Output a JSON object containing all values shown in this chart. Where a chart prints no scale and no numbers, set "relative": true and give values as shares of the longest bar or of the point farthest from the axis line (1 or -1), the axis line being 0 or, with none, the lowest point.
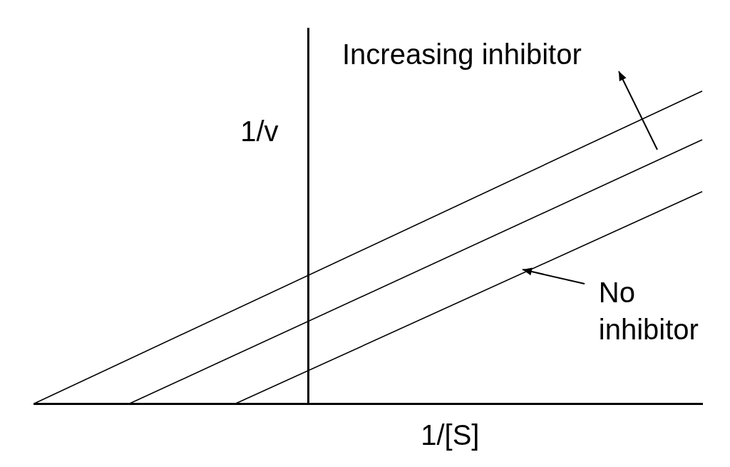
{
  "chart_data": {
    "type": "line",
    "relative": true,
    "xlabel": "1/[S]",
    "ylabel": "1/v",
    "categories": [
      null,
      null,
      null,
      null,
      null,
      null,
      null,
      null,
      null,
      null,
      null,
      null,
      null,
      null,
      null,
      null,
      null,
      null,
      null,
      null,
      null,
      null,
      null,
      null,
      null,
      null,
      null,
      null,
      null,
      null,
      null,
      null,
      null,
      null,
      null,
      null,
      null,
      null,
      null,
      null,
      null,
      null,
      null,
      null,
      null,
      null,
      null,
      null,
      null,
      null,
      null,
      null,
      null,
      null,
      null,
      null,
      null,
      null,
      null,
      null,
      null,
      null,
      null,
      null
    ],
    "annotations": [
      "Increasing inhibitor"
    ],
    "series": [
      {
        "color": "#000000",
        "values": [
          0,
          null,
          null,
          null,
          null,
          null,
          null,
          null,
          null,
          null,
          null,
          null,
          null,
          null,
          null,
          null,
          null,
          null,
          null,
          null,
          null,
          null,
          null,
          null,
          null,
          null,
          null,
          null,
          null,
          null,
          null,
          null,
          null,
          null,
          null,
          null,
          null,
          null,
          null,
          null,
          null,
          null,
          null,
          null,
          null,
          null,
          null,
          null,
          null,
          null,
          null,
          null,
          null,
          null,
          null,
          null,
          null,
          null,
          null,
          null,
          null,
          null,
          null,
          1
        ]
      },
      {
        "color": "#000000",
        "values": [
          null,
          null,
          null,
          null,
          null,
          null,
          null,
          null,
          null,
          0,
          null,
          null,
          null,
          null,
          null,
          null,
          null,
          null,
          null,
          null,
          null,
          null,
          null,
          null,
          null,
          null,
          null,
          null,
          null,
          null,
          null,
          null,
          null,
          null,
          null,
          null,
          null,
          null,
          null,
          null,
          null,
          null,
          null,
          null,
          null,
          null,
          null,
          null,
          null,
          null,
          null,
          null,
          null,
          null,
          null,
          null,
          null,
          null,
          null,
          null,
          null,
          null,
          null,
          0.844
        ]
      },
      {
        "name": "No inhibitor",
        "color": "#000000",
        "values": [
          null,
          null,
          null,
          null,
          null,
          null,
          null,
          null,
          null,
          null,
          null,
          null,
          null,
          null,
          null,
          null,
          null,
          null,
          null,
          0,
          null,
          null,
          null,
          null,
          null,
          null,
          null,
          null,
          null,
          null,
          null,
          null,
          null,
          null,
          null,
          null,
          null,
          null,
          null,
          null,
          null,
          null,
          null,
          null,
          null,
          null,
          null,
          null,
          null,
          null,
          null,
          null,
          null,
          null,
          null,
          null,
          null,
          null,
          null,
          null,
          null,
          null,
          null,
          0.678
        ]
      }
    ]
  }
}
